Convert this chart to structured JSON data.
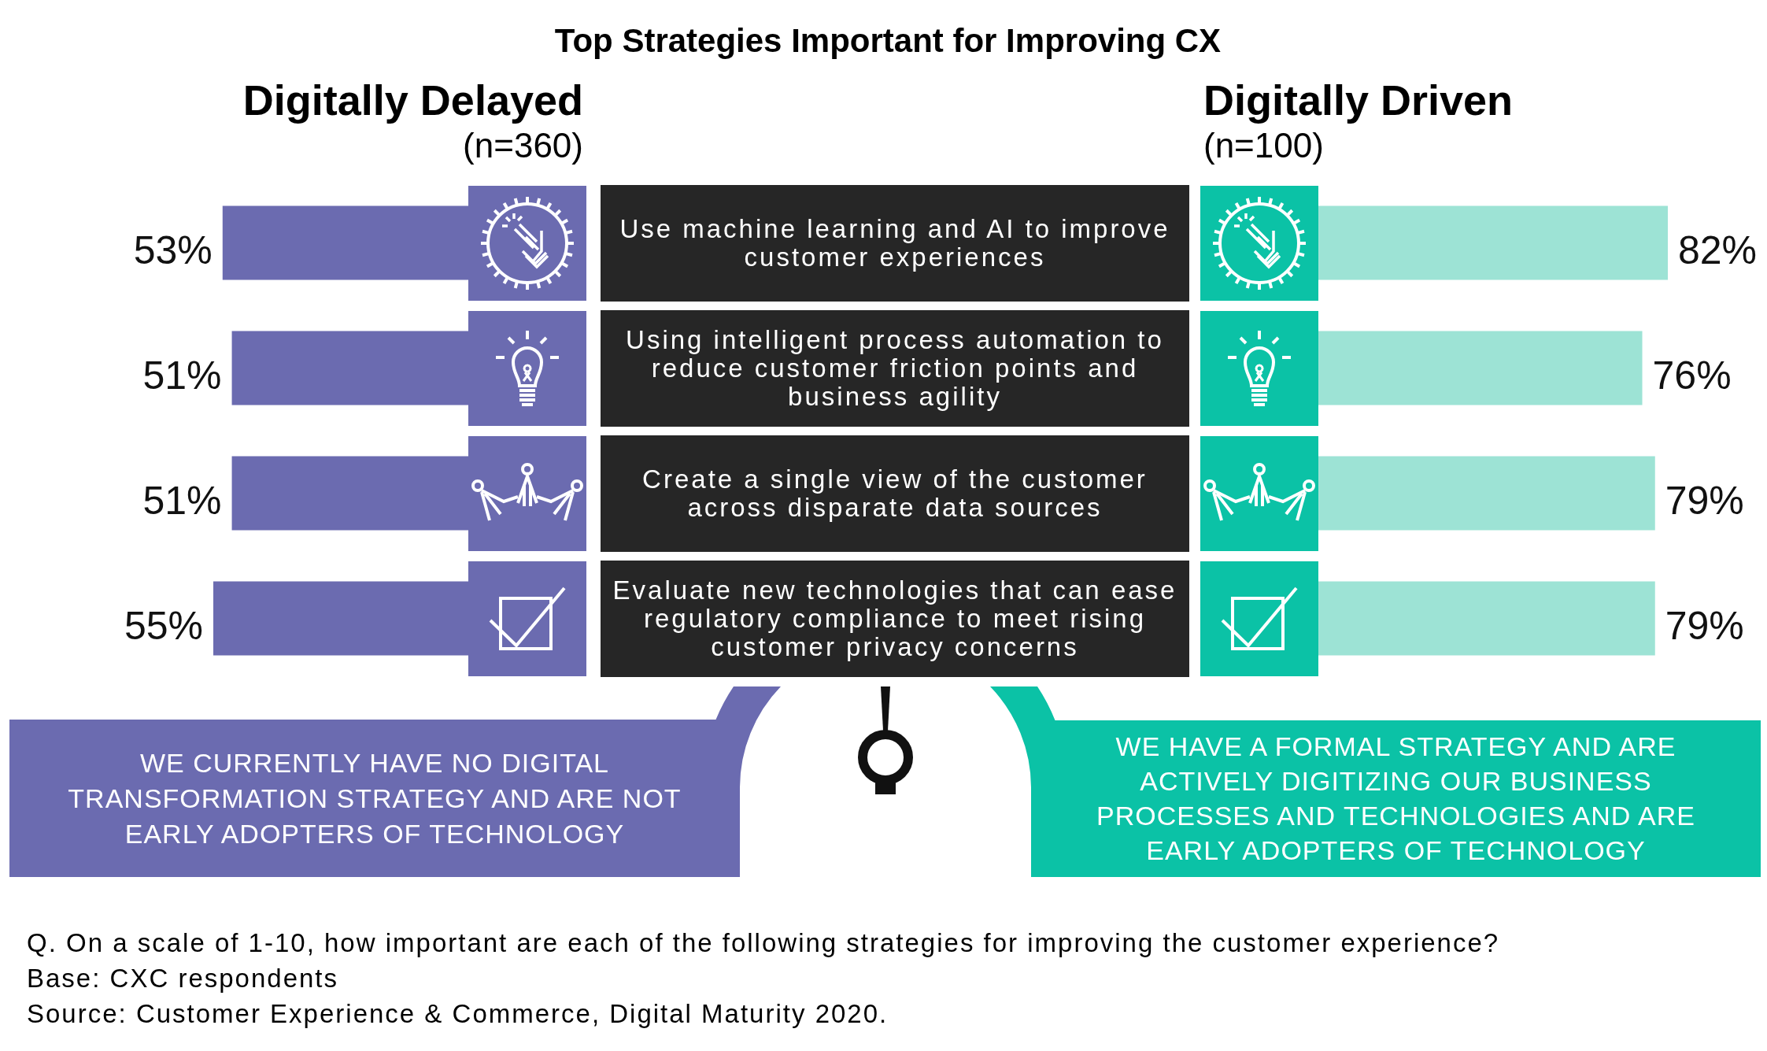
{
  "chart_data": [
    {
      "type": "bar",
      "orientation": "horizontal",
      "title": "Top Strategies Important for Improving CX",
      "categories": [
        "Use machine learning and AI to improve customer experiences",
        "Using intelligent process automation to reduce customer friction points and business agility",
        "Create a single view of the customer across disparate data sources",
        "Evaluate new technologies that can ease regulatory compliance to meet rising customer privacy concerns"
      ],
      "series": [
        {
          "name": "Digitally Delayed",
          "color": "#6b6bb0",
          "values": [
            53,
            51,
            51,
            55
          ],
          "value_labels": [
            "53%",
            "51%",
            "51%",
            "55%"
          ]
        }
      ],
      "tick_labels": "y",
      "annotations": [
        "(n=360)",
        "WE CURRENTLY HAVE NO DIGITAL TRANSFORMATION STRATEGY AND ARE NOT EARLY ADOPTERS OF TECHNOLOGY",
        "Q. On a scale of 1-10, how important are each of the following strategies for improving the customer experience?",
        "Base: CXC respondents",
        "Source: Customer Experience & Commerce, Digital Maturity 2020."
      ]
    },
    {
      "type": "bar",
      "orientation": "horizontal",
      "categories": [
        "Use machine learning and AI to improve customer experiences",
        "Using intelligent process automation to reduce customer friction points and business agility",
        "Create a single view of the customer across disparate data sources",
        "Evaluate new technologies that can ease regulatory compliance to meet rising customer privacy concerns"
      ],
      "series": [
        {
          "name": "Digitally Driven",
          "color": "#9de3d5",
          "values": [
            82,
            76,
            79,
            79
          ],
          "value_labels": [
            "82%",
            "76%",
            "79%",
            "79%"
          ]
        }
      ],
      "tick_labels": false,
      "annotations": [
        "(n=100)",
        "WE HAVE A FORMAL STRATEGY AND ARE ACTIVELY DIGITIZING OUR BUSINESS PROCESSES AND TECHNOLOGIES AND ARE EARLY ADOPTERS OF TECHNOLOGY"
      ]
    }
  ]
}
